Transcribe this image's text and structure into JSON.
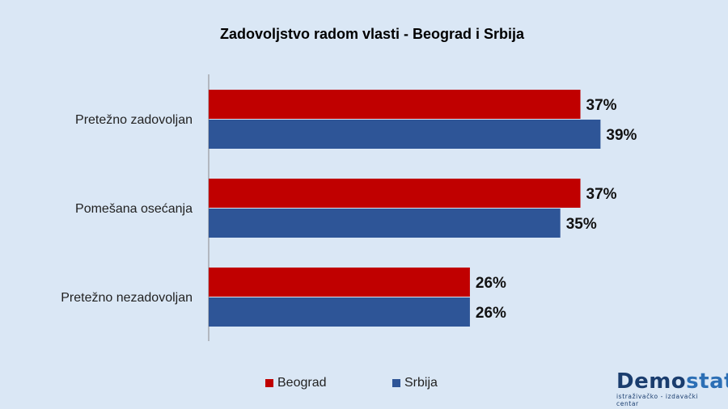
{
  "chart_data": {
    "type": "bar",
    "orientation": "horizontal",
    "title": "Zadovoljstvo radom vlasti - Beograd i Srbija",
    "categories": [
      "Pretežno zadovoljan",
      "Pomešana osećanja",
      "Pretežno nezadovoljan"
    ],
    "series": [
      {
        "name": "Beograd",
        "color": "#c00000",
        "values": [
          37,
          37,
          26
        ],
        "labels": [
          "37%",
          "37%",
          "26%"
        ]
      },
      {
        "name": "Srbija",
        "color": "#2e5597",
        "values": [
          39,
          35,
          26
        ],
        "labels": [
          "39%",
          "35%",
          "26%"
        ]
      }
    ],
    "xlim": [
      0,
      48
    ],
    "grid": false,
    "legend_position": "bottom"
  },
  "logo": {
    "word_part1": "Demo",
    "word_part2": "stat",
    "tagline": "istraživačko - izdavački centar"
  }
}
